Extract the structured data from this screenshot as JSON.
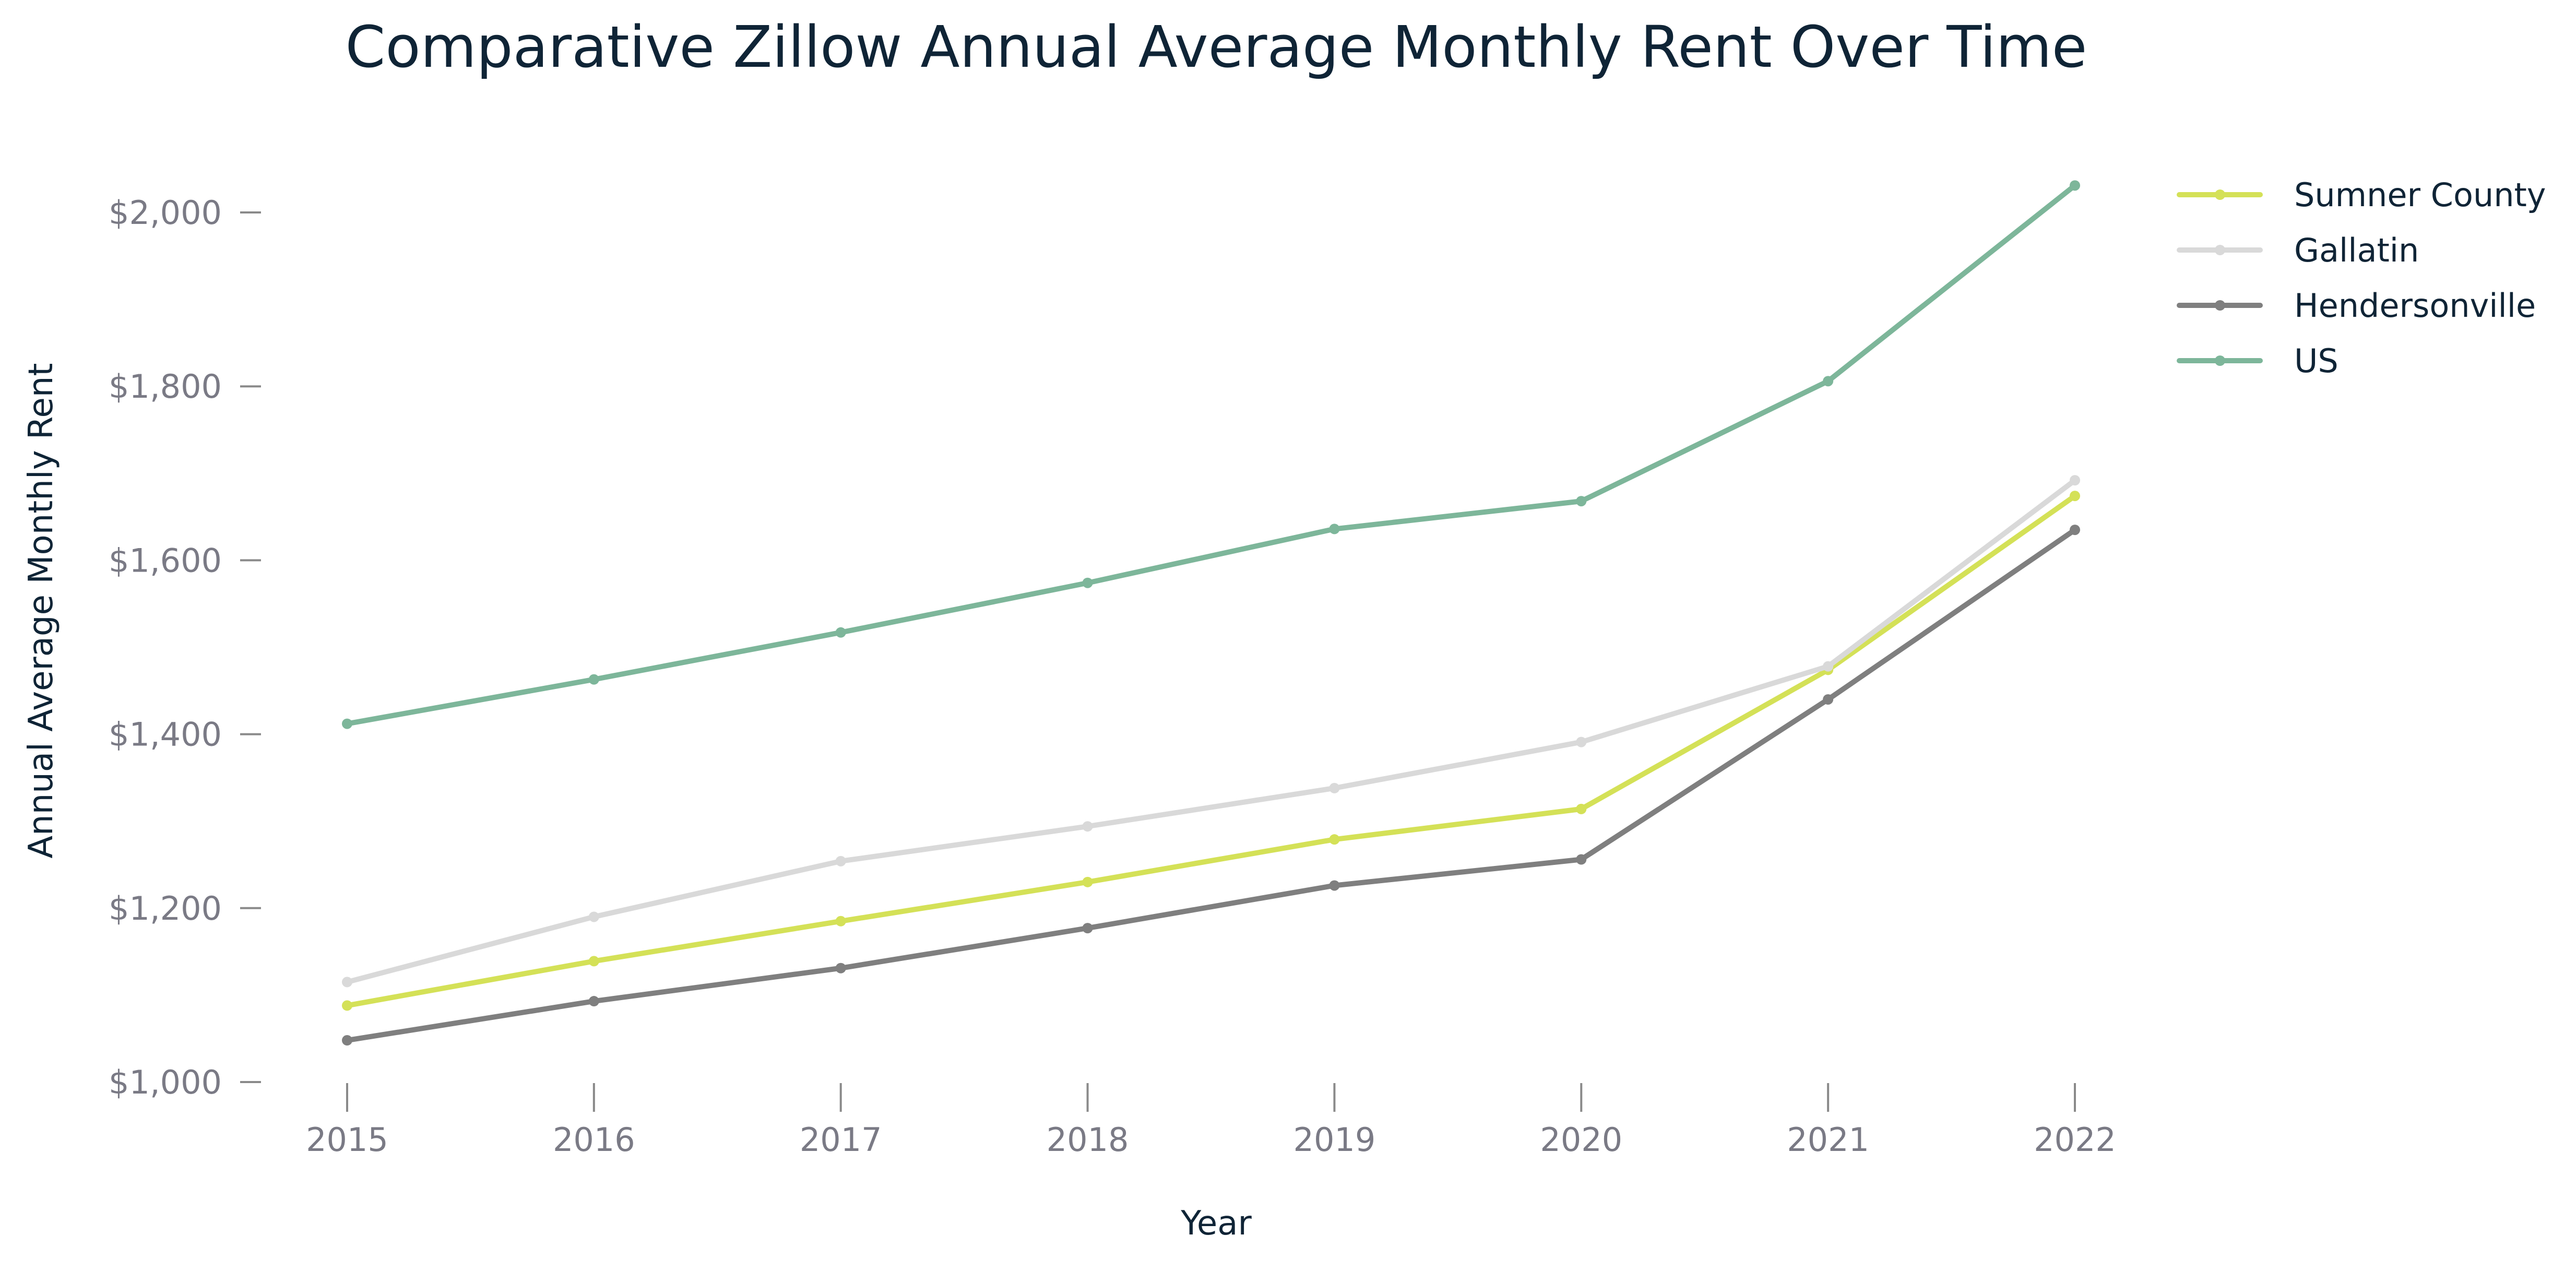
{
  "chart_data": {
    "type": "line",
    "title": "Comparative Zillow Annual Average Monthly Rent Over Time",
    "xlabel": "Year",
    "ylabel": "Annual Average Monthly Rent",
    "x": [
      2015,
      2016,
      2017,
      2018,
      2019,
      2020,
      2021,
      2022
    ],
    "x_tick_labels": [
      "2015",
      "2016",
      "2017",
      "2018",
      "2019",
      "2020",
      "2021",
      "2022"
    ],
    "ylim": [
      1000,
      2100
    ],
    "y_ticks": [
      1000,
      1200,
      1400,
      1600,
      1800,
      2000
    ],
    "y_tick_labels": [
      "$1,000",
      "$1,200",
      "$1,400",
      "$1,600",
      "$1,800",
      "$2,000"
    ],
    "grid": false,
    "legend_position": "top-right",
    "series": [
      {
        "name": "Sumner County",
        "color": "#d4e157",
        "values": [
          1088,
          1139,
          1185,
          1230,
          1279,
          1314,
          1474,
          1674
        ]
      },
      {
        "name": "Gallatin",
        "color": "#d9d9d9",
        "values": [
          1115,
          1190,
          1254,
          1294,
          1338,
          1391,
          1478,
          1692
        ]
      },
      {
        "name": "Hendersonville",
        "color": "#7f7f7f",
        "values": [
          1048,
          1093,
          1131,
          1177,
          1226,
          1256,
          1440,
          1635
        ]
      },
      {
        "name": "US",
        "color": "#7db69a",
        "values": [
          1412,
          1463,
          1517,
          1574,
          1636,
          1668,
          1806,
          2031
        ]
      }
    ]
  }
}
